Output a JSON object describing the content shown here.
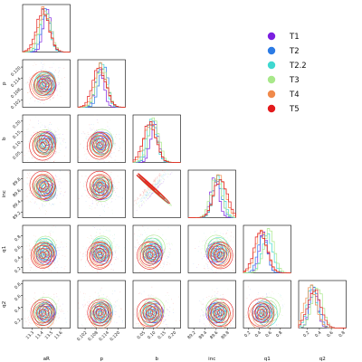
{
  "chart_data": {
    "type": "corner",
    "parameters": [
      {
        "key": "aR",
        "label": "aR",
        "lim": [
          13.2,
          13.7
        ],
        "ticks": [
          "13.3",
          "13.4",
          "13.5",
          "13.6"
        ],
        "tick_values": [
          13.3,
          13.4,
          13.5,
          13.6
        ]
      },
      {
        "key": "p",
        "label": "p",
        "lim": [
          0.098,
          0.124
        ],
        "ticks": [
          "0.102",
          "0.108",
          "0.114",
          "0.120"
        ],
        "tick_values": [
          0.102,
          0.108,
          0.114,
          0.12
        ]
      },
      {
        "key": "b",
        "label": "b",
        "lim": [
          0.0,
          0.23
        ],
        "ticks": [
          "0.05",
          "0.10",
          "0.15",
          "0.20"
        ],
        "tick_values": [
          0.05,
          0.1,
          0.15,
          0.2
        ]
      },
      {
        "key": "inc",
        "label": "inc",
        "lim": [
          89.1,
          89.95
        ],
        "ticks": [
          "89.2",
          "89.4",
          "89.6",
          "89.8"
        ],
        "tick_values": [
          89.2,
          89.4,
          89.6,
          89.8
        ]
      },
      {
        "key": "q1",
        "label": "q1",
        "lim": [
          0.1,
          1.0
        ],
        "ticks": [
          "0.2",
          "0.4",
          "0.6",
          "0.8"
        ],
        "tick_values": [
          0.2,
          0.4,
          0.6,
          0.8
        ]
      },
      {
        "key": "q2",
        "label": "q2",
        "lim": [
          0.05,
          0.85
        ],
        "ticks": [
          "0.2",
          "0.4",
          "0.6",
          "0.8"
        ],
        "tick_values": [
          0.2,
          0.4,
          0.6,
          0.8
        ]
      }
    ],
    "series": [
      {
        "name": "T1",
        "color": "#7b1fe0",
        "mean": [
          13.46,
          0.11,
          0.105,
          89.58,
          0.48,
          0.3
        ]
      },
      {
        "name": "T2",
        "color": "#2c7be5",
        "mean": [
          13.45,
          0.112,
          0.095,
          89.62,
          0.46,
          0.32
        ]
      },
      {
        "name": "T2.2",
        "color": "#3fd8d0",
        "mean": [
          13.43,
          0.1108,
          0.09,
          89.64,
          0.55,
          0.28
        ]
      },
      {
        "name": "T3",
        "color": "#a8e88a",
        "mean": [
          13.44,
          0.1112,
          0.1,
          89.6,
          0.58,
          0.36
        ]
      },
      {
        "name": "T4",
        "color": "#f08a4b",
        "mean": [
          13.42,
          0.1105,
          0.085,
          89.66,
          0.44,
          0.25
        ]
      },
      {
        "name": "T5",
        "color": "#e31a1c",
        "mean": [
          13.41,
          0.1098,
          0.08,
          89.68,
          0.43,
          0.31
        ]
      }
    ],
    "legend_position": "top-right"
  }
}
